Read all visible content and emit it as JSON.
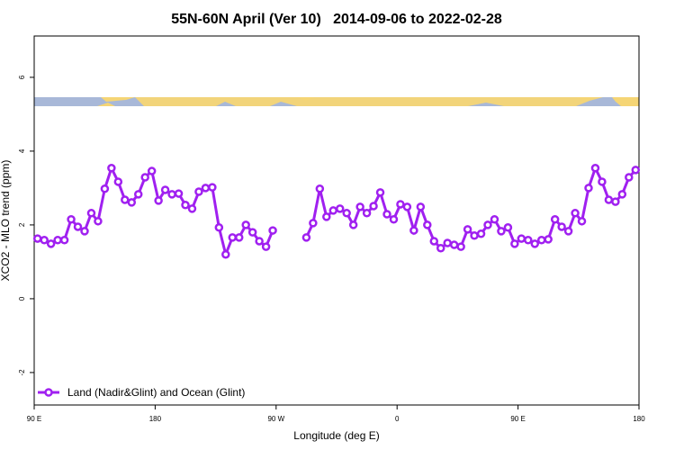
{
  "chart_data": {
    "type": "line",
    "title": "55N-60N April (Ver 10)   2014-09-06 to 2022-02-28",
    "x_label": "Longitude (deg E)",
    "y_label": "XCO2 - MLO trend (ppm)",
    "xlim": [
      90,
      540
    ],
    "xticks": [
      {
        "value": 90,
        "label": "90 E"
      },
      {
        "value": 180,
        "label": "180"
      },
      {
        "value": 270,
        "label": "90 W"
      },
      {
        "value": 360,
        "label": "0"
      },
      {
        "value": 450,
        "label": "90 E"
      },
      {
        "value": 540,
        "label": "180"
      }
    ],
    "ylim": [
      -2.88,
      7.12
    ],
    "yticks": [
      -2,
      0,
      2,
      4,
      6
    ],
    "legend_position": "bottom-left",
    "x": [
      92.5,
      97.5,
      102.5,
      107.5,
      112.5,
      117.5,
      122.5,
      127.5,
      132.5,
      137.5,
      142.5,
      147.5,
      152.5,
      157.5,
      162.5,
      167.5,
      172.5,
      177.5,
      182.5,
      187.5,
      192.5,
      197.5,
      202.5,
      207.5,
      212.5,
      217.5,
      222.5,
      227.5,
      232.5,
      237.5,
      242.5,
      247.5,
      252.5,
      257.5,
      262.5,
      267.5,
      272.5,
      277.5,
      282.5,
      287.5,
      292.5,
      297.5,
      302.5,
      307.5,
      312.5,
      317.5,
      322.5,
      327.5,
      332.5,
      337.5,
      342.5,
      347.5,
      352.5,
      357.5,
      362.5,
      367.5,
      372.5,
      377.5,
      382.5,
      387.5,
      392.5,
      397.5,
      402.5,
      407.5,
      412.5,
      417.5,
      422.5,
      427.5,
      432.5,
      437.5,
      442.5,
      447.5,
      452.5,
      457.5,
      462.5,
      467.5,
      472.5,
      477.5,
      482.5,
      487.5,
      492.5,
      497.5,
      502.5,
      507.5,
      512.5,
      517.5,
      522.5,
      527.5,
      532.5,
      537.5
    ],
    "series": [
      {
        "name": "Land (Nadir&Glint) and Ocean (Glint)",
        "color": "#a020f0",
        "values": [
          1.63,
          1.59,
          1.49,
          1.59,
          1.59,
          2.15,
          1.95,
          1.83,
          2.32,
          2.1,
          2.98,
          3.54,
          3.17,
          2.68,
          2.61,
          2.83,
          3.29,
          3.46,
          2.66,
          2.95,
          2.83,
          2.85,
          2.54,
          2.44,
          2.9,
          3.0,
          3.02,
          1.93,
          1.2,
          1.66,
          1.66,
          2.0,
          1.8,
          1.56,
          1.41,
          1.85,
          null,
          null,
          null,
          null,
          1.66,
          2.05,
          2.98,
          2.22,
          2.39,
          2.44,
          2.32,
          2.0,
          2.49,
          2.32,
          2.51,
          2.88,
          2.29,
          2.15,
          2.56,
          2.49,
          1.85,
          2.49,
          2.0,
          1.56,
          1.37,
          1.51,
          1.46,
          1.41,
          1.88,
          1.71,
          1.76,
          2.0,
          2.15,
          1.83,
          1.93,
          1.49,
          1.63,
          1.59,
          1.49,
          1.59,
          1.61,
          2.15,
          1.95,
          1.83,
          2.32,
          2.1,
          3.0,
          3.54,
          3.17,
          2.68,
          2.63,
          2.83,
          3.29,
          3.49
        ]
      }
    ]
  }
}
